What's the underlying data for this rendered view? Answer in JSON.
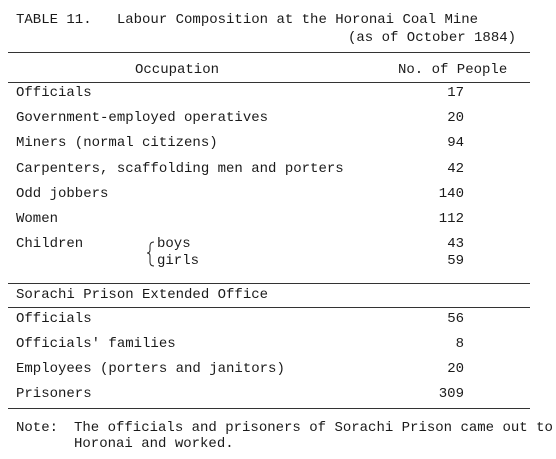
{
  "table": {
    "title": "TABLE 11.   Labour Composition at the Horonai Coal Mine",
    "subtitle": "(as of October 1884)",
    "header": [
      "Occupation",
      "No. of People"
    ],
    "rows": [
      [
        "Officials",
        17
      ],
      [
        "Government-employed operatives",
        20
      ],
      [
        "Miners (normal citizens)",
        94
      ],
      [
        "Carpenters, scaffolding men and porters",
        42
      ],
      [
        "Odd jobbers",
        140
      ],
      [
        "Women",
        112
      ]
    ],
    "children": {
      "label": "Children",
      "rows": [
        [
          "boys",
          43
        ],
        [
          "girls",
          59
        ]
      ]
    },
    "section": "Sorachi Prison Extended Office",
    "section_rows": [
      [
        "Officials",
        56
      ],
      [
        "Officials' families",
        8
      ],
      [
        "Employees (porters and janitors)",
        20
      ],
      [
        "Prisoners",
        309
      ]
    ],
    "note_label": "Note:",
    "note": [
      "The officials and prisoners of Sorachi Prison came out to",
      "Horonai and worked."
    ]
  }
}
